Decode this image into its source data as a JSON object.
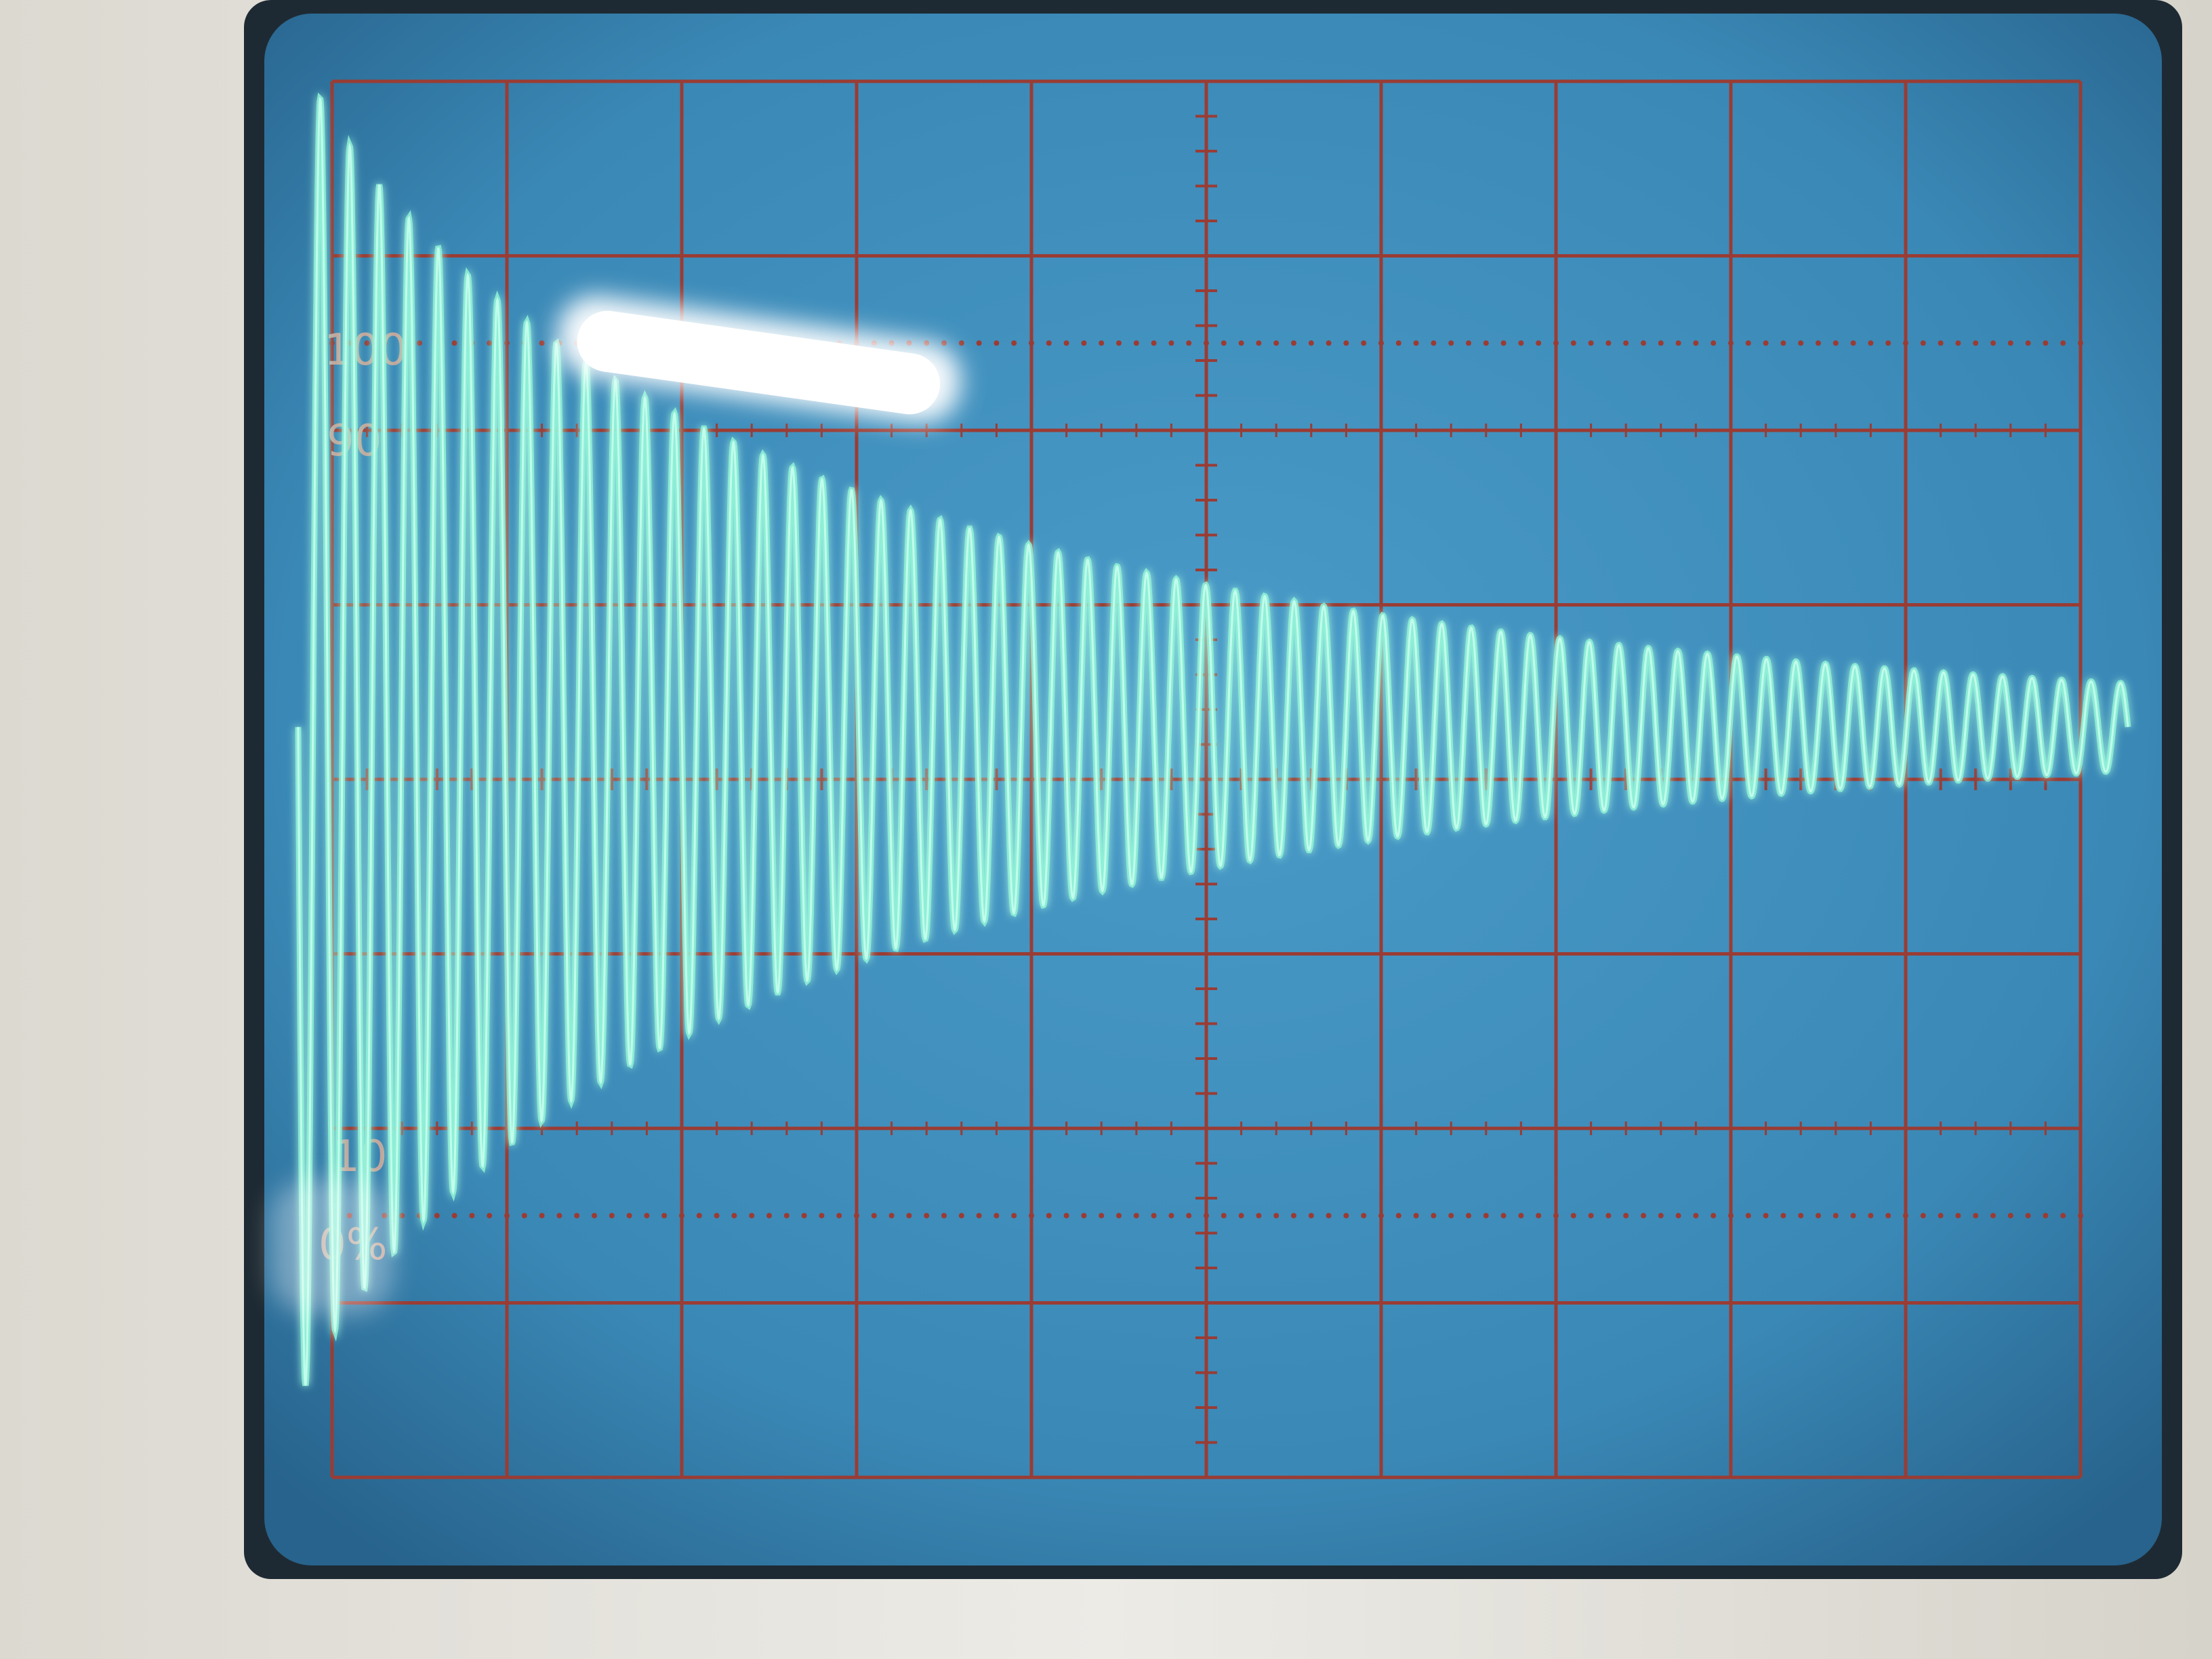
{
  "scope": {
    "graticule_labels": {
      "top": "100",
      "upper": "90",
      "lower": "10",
      "bottom": "0%"
    },
    "grid": {
      "major_cols": 10,
      "major_rows": 8,
      "minor_per_division": 5
    },
    "colors": {
      "bezel": "#e9e7e1",
      "bezel_shadow": "#c9c6bd",
      "screen": "#3c8fbe",
      "screen_dark": "#2b6f9c",
      "graticule": "#9a3c34",
      "trace": "#8ef2d6",
      "trace_core": "#c8fff0",
      "glare": "#ffffff"
    },
    "signal": {
      "description_type": "damped-oscillation",
      "cycles": 62,
      "start_amplitude_divisions": 3.9,
      "end_amplitude_divisions": 0.25,
      "center_offset_divisions": -0.3
    }
  }
}
